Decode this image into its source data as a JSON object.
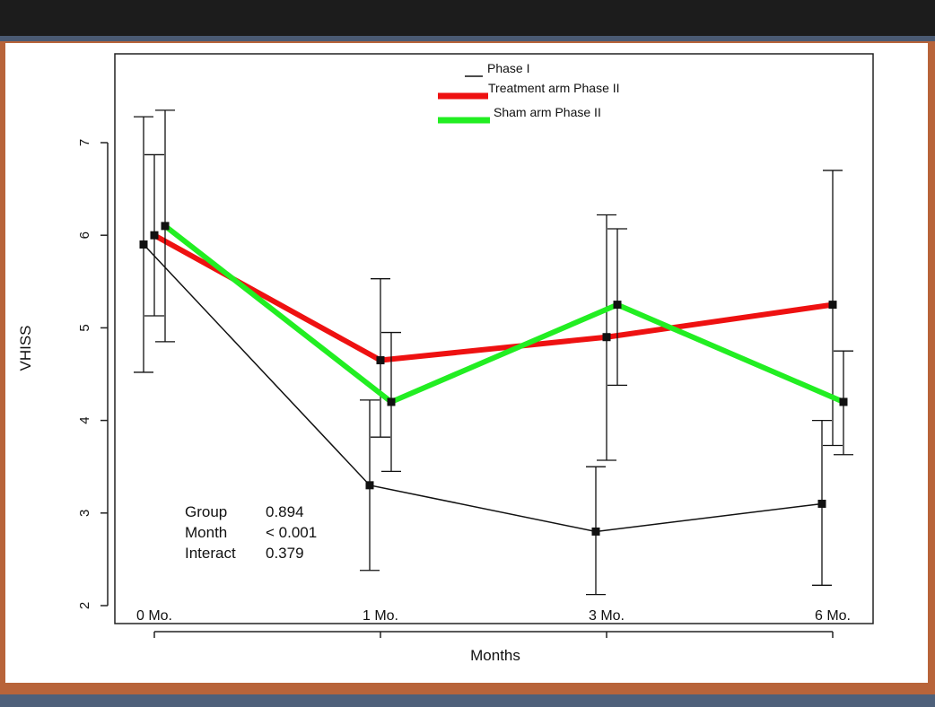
{
  "chart_data": {
    "type": "line",
    "xlabel": "Months",
    "ylabel": "VHISS",
    "categories": [
      "0 Mo.",
      "1 Mo.",
      "3 Mo.",
      "6 Mo."
    ],
    "ylim": [
      1.9,
      7.7
    ],
    "yticks": [
      "2",
      "3",
      "4",
      "5",
      "6",
      "7"
    ],
    "grid": false,
    "legend_position": "top-center",
    "series": [
      {
        "name": "Phase I",
        "color": "#111111",
        "values": [
          5.9,
          3.3,
          2.8,
          3.1
        ],
        "error_low": [
          4.52,
          2.38,
          2.12,
          2.22
        ],
        "error_high": [
          7.28,
          4.22,
          3.5,
          4.0
        ]
      },
      {
        "name": "Treatment arm Phase II",
        "color": "#ee1111",
        "values": [
          6.0,
          4.65,
          4.9,
          5.25
        ],
        "error_low": [
          5.13,
          3.82,
          3.57,
          3.73
        ],
        "error_high": [
          6.87,
          5.53,
          6.22,
          6.7
        ]
      },
      {
        "name": "Sham arm Phase II",
        "color": "#22ee22",
        "values": [
          6.1,
          4.2,
          5.25,
          4.2
        ],
        "error_low": [
          4.85,
          3.45,
          4.38,
          3.63
        ],
        "error_high": [
          7.35,
          4.95,
          6.07,
          4.75
        ]
      }
    ],
    "annotations": [
      {
        "label": "Group",
        "value": "0.894"
      },
      {
        "label": "Month",
        "value": "< 0.001"
      },
      {
        "label": "Interact",
        "value": "0.379"
      }
    ]
  }
}
